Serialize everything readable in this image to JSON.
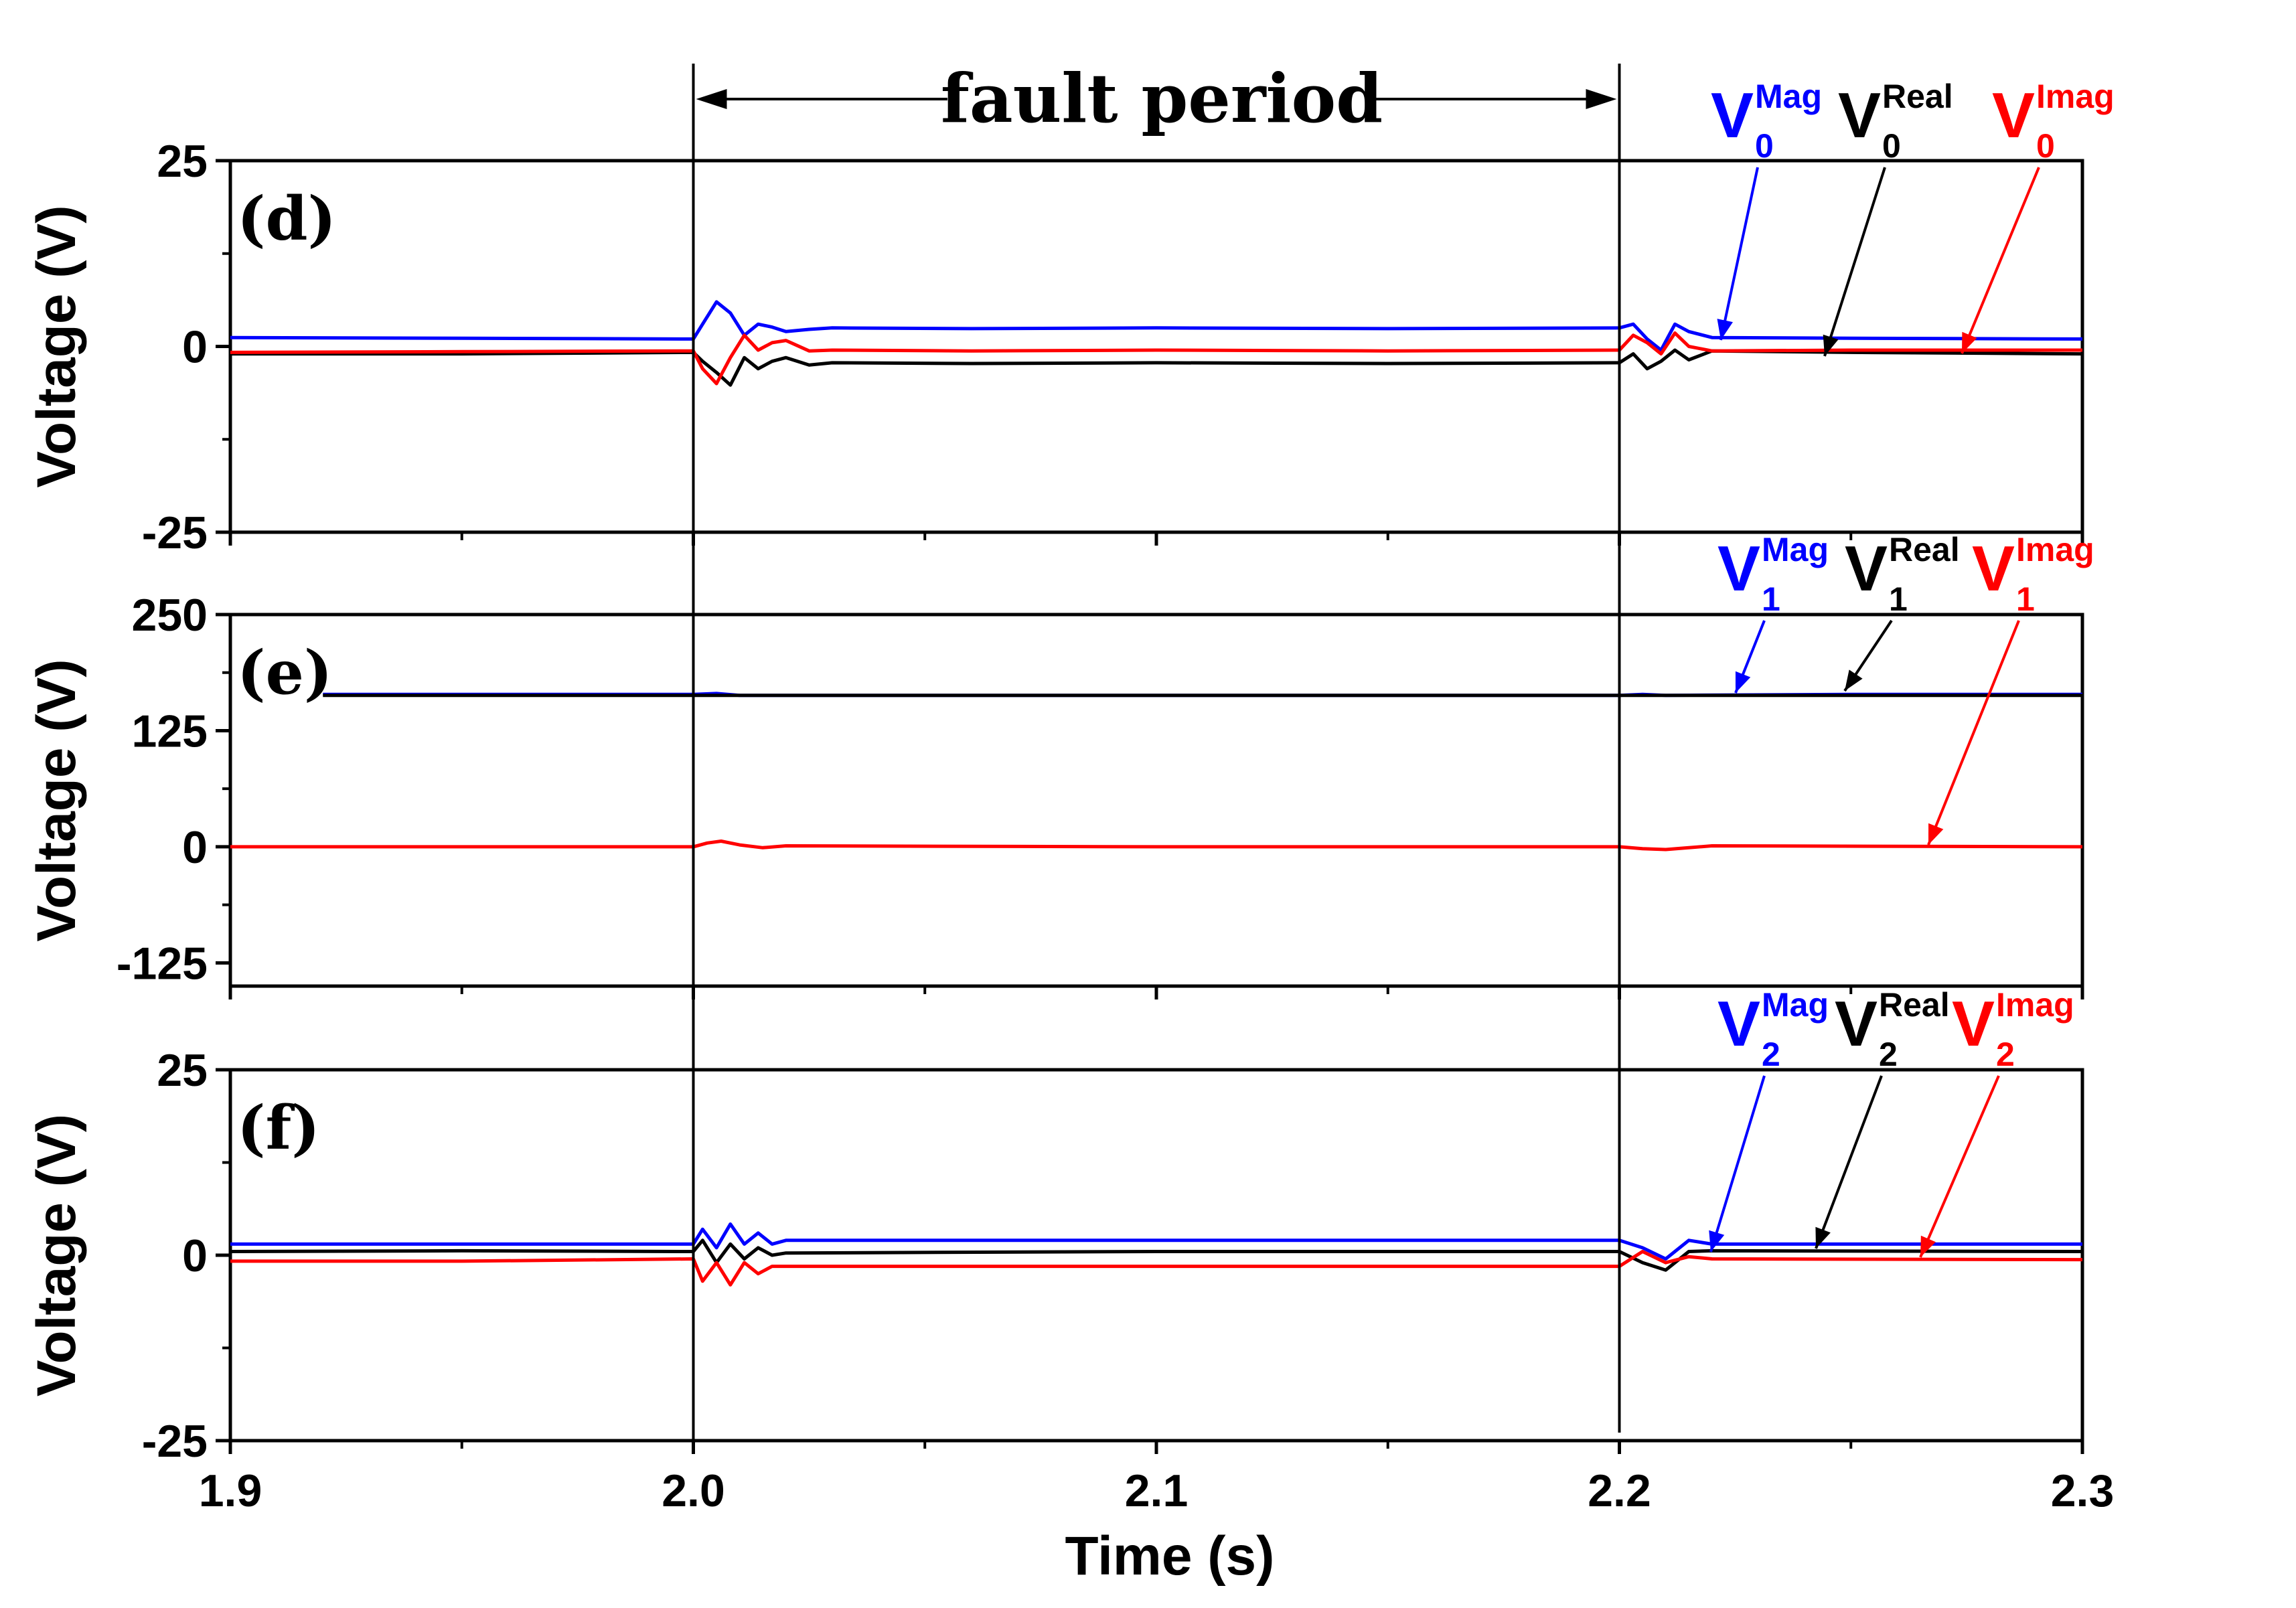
{
  "colors": {
    "mag": "#0000ff",
    "real": "#000000",
    "imag": "#ff0000"
  },
  "annotation": {
    "fault_label": "fault period",
    "fault_start": 2.0,
    "fault_end": 2.2
  },
  "chart_data": [
    {
      "type": "line",
      "panel_label": "(d)",
      "ylabel": "Voltage (V)",
      "ylim": [
        -25,
        25
      ],
      "yticks": [
        "25",
        "0",
        "-25"
      ],
      "xlim": [
        1.9,
        2.3
      ],
      "legend": {
        "v": "V",
        "sub": "0",
        "mag": "Mag",
        "real": "Real",
        "imag": "Imag"
      },
      "series": [
        {
          "name": "Mag",
          "color": "#0000ff",
          "x": [
            1.9,
            1.95,
            2.0,
            2.002,
            2.005,
            2.008,
            2.011,
            2.014,
            2.017,
            2.02,
            2.025,
            2.03,
            2.06,
            2.1,
            2.15,
            2.2,
            2.203,
            2.206,
            2.209,
            2.212,
            2.215,
            2.22,
            2.25,
            2.3
          ],
          "y": [
            1.2,
            1.1,
            1.0,
            3.0,
            6.0,
            4.5,
            1.5,
            3.0,
            2.6,
            2.0,
            2.3,
            2.5,
            2.4,
            2.5,
            2.4,
            2.5,
            3.0,
            1.0,
            -0.5,
            3.0,
            2.0,
            1.2,
            1.1,
            1.0
          ]
        },
        {
          "name": "Real",
          "color": "#000000",
          "x": [
            1.9,
            1.95,
            2.0,
            2.002,
            2.005,
            2.008,
            2.011,
            2.014,
            2.017,
            2.02,
            2.025,
            2.03,
            2.06,
            2.1,
            2.15,
            2.2,
            2.203,
            2.206,
            2.209,
            2.212,
            2.215,
            2.22,
            2.25,
            2.3
          ],
          "y": [
            -1.0,
            -1.0,
            -0.8,
            -2.0,
            -3.5,
            -5.2,
            -1.5,
            -3.0,
            -2.0,
            -1.5,
            -2.5,
            -2.2,
            -2.3,
            -2.2,
            -2.3,
            -2.2,
            -1.0,
            -3.0,
            -2.0,
            -0.5,
            -1.8,
            -0.6,
            -0.8,
            -1.0
          ]
        },
        {
          "name": "Imag",
          "color": "#ff0000",
          "x": [
            1.9,
            1.95,
            2.0,
            2.002,
            2.005,
            2.008,
            2.011,
            2.014,
            2.017,
            2.02,
            2.025,
            2.03,
            2.06,
            2.1,
            2.15,
            2.2,
            2.203,
            2.206,
            2.209,
            2.212,
            2.215,
            2.22,
            2.25,
            2.3
          ],
          "y": [
            -0.8,
            -0.7,
            -0.6,
            -3.0,
            -5.0,
            -1.5,
            1.5,
            -0.5,
            0.5,
            0.8,
            -0.6,
            -0.5,
            -0.6,
            -0.5,
            -0.6,
            -0.5,
            1.5,
            0.5,
            -1.0,
            1.8,
            0.0,
            -0.6,
            -0.5,
            -0.5
          ]
        }
      ]
    },
    {
      "type": "line",
      "panel_label": "(e)",
      "ylabel": "Voltage (V)",
      "ylim": [
        -150,
        250
      ],
      "yticks": [
        "250",
        "125",
        "0",
        "-125"
      ],
      "xlim": [
        1.9,
        2.3
      ],
      "legend": {
        "v": "V",
        "sub": "1",
        "mag": "Mag",
        "real": "Real",
        "imag": "Imag"
      },
      "series": [
        {
          "name": "Mag",
          "color": "#0000ff",
          "x": [
            1.92,
            1.95,
            2.0,
            2.005,
            2.01,
            2.1,
            2.2,
            2.205,
            2.21,
            2.25,
            2.3
          ],
          "y": [
            164,
            164,
            164,
            165,
            163,
            163,
            163,
            164,
            163,
            164,
            164
          ]
        },
        {
          "name": "Real",
          "color": "#000000",
          "x": [
            1.92,
            2.3
          ],
          "y": [
            163,
            163
          ]
        },
        {
          "name": "Imag",
          "color": "#ff0000",
          "x": [
            1.9,
            1.95,
            2.0,
            2.003,
            2.006,
            2.01,
            2.015,
            2.02,
            2.1,
            2.2,
            2.205,
            2.21,
            2.215,
            2.22,
            2.3
          ],
          "y": [
            0,
            0,
            0,
            4,
            6,
            2,
            -1,
            1,
            0,
            0,
            -2,
            -3,
            -1,
            1,
            0
          ]
        }
      ]
    },
    {
      "type": "line",
      "panel_label": "(f)",
      "ylabel": "Voltage (V)",
      "ylim": [
        -25,
        25
      ],
      "yticks": [
        "25",
        "0",
        "-25"
      ],
      "xlim": [
        1.9,
        2.3
      ],
      "legend": {
        "v": "V",
        "sub": "2",
        "mag": "Mag",
        "real": "Real",
        "imag": "Imag"
      },
      "series": [
        {
          "name": "Mag",
          "color": "#0000ff",
          "x": [
            1.9,
            1.95,
            2.0,
            2.002,
            2.005,
            2.008,
            2.011,
            2.014,
            2.017,
            2.02,
            2.1,
            2.2,
            2.205,
            2.21,
            2.215,
            2.22,
            2.3
          ],
          "y": [
            1.5,
            1.5,
            1.5,
            3.5,
            1.0,
            4.2,
            1.5,
            3.0,
            1.5,
            2.0,
            2.0,
            2.0,
            1.0,
            -0.5,
            2.0,
            1.5,
            1.5
          ]
        },
        {
          "name": "Real",
          "color": "#000000",
          "x": [
            1.9,
            1.95,
            2.0,
            2.002,
            2.005,
            2.008,
            2.011,
            2.014,
            2.017,
            2.02,
            2.1,
            2.2,
            2.205,
            2.21,
            2.215,
            2.22,
            2.3
          ],
          "y": [
            0.5,
            0.6,
            0.5,
            2.0,
            -1.0,
            1.5,
            -0.5,
            1.0,
            0.0,
            0.3,
            0.5,
            0.5,
            -1.0,
            -2.0,
            0.5,
            0.6,
            0.5
          ]
        },
        {
          "name": "Imag",
          "color": "#ff0000",
          "x": [
            1.9,
            1.95,
            2.0,
            2.002,
            2.005,
            2.008,
            2.011,
            2.014,
            2.017,
            2.02,
            2.1,
            2.2,
            2.205,
            2.21,
            2.215,
            2.22,
            2.3
          ],
          "y": [
            -0.8,
            -0.8,
            -0.5,
            -3.5,
            -1.0,
            -4.0,
            -1.0,
            -2.5,
            -1.5,
            -1.5,
            -1.5,
            -1.5,
            0.5,
            -1.0,
            -0.2,
            -0.5,
            -0.6
          ]
        }
      ]
    }
  ],
  "x_axis": {
    "label": "Time (s)",
    "ticks": [
      "1.9",
      "2.0",
      "2.1",
      "2.2",
      "2.3"
    ]
  }
}
